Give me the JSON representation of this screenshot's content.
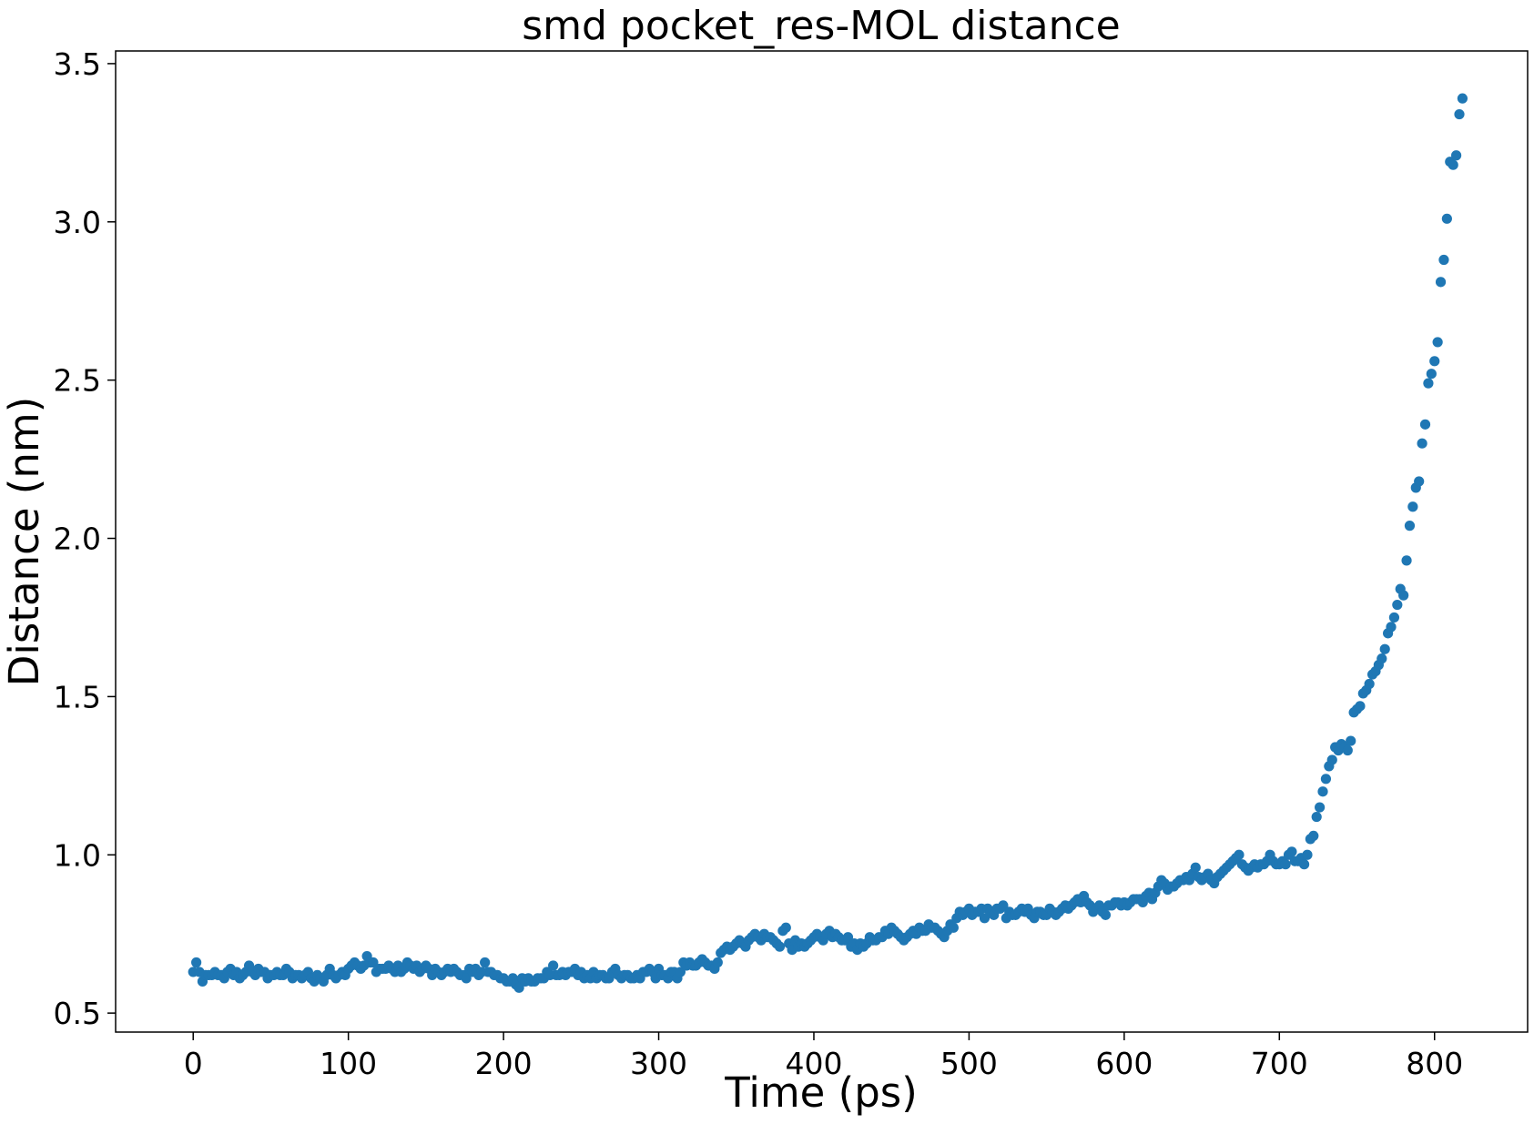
{
  "chart_data": {
    "type": "scatter",
    "title": "smd pocket_res-MOL distance",
    "xlabel": "Time (ps)",
    "ylabel": "Distance (nm)",
    "xlim": [
      -50,
      860
    ],
    "ylim": [
      0.44,
      3.54
    ],
    "xticks": [
      0,
      100,
      200,
      300,
      400,
      500,
      600,
      700,
      800
    ],
    "xtick_labels": [
      "0",
      "100",
      "200",
      "300",
      "400",
      "500",
      "600",
      "700",
      "800"
    ],
    "yticks": [
      0.5,
      1.0,
      1.5,
      2.0,
      2.5,
      3.0,
      3.5
    ],
    "ytick_labels": [
      "0.5",
      "1.0",
      "1.5",
      "2.0",
      "2.5",
      "3.0",
      "3.5"
    ],
    "grid": false,
    "legend": "none",
    "marker_color": "#1f77b4",
    "x_step": 2,
    "series": [
      {
        "x_start": 0,
        "x_step": 2,
        "y": [
          0.63,
          0.66,
          0.63,
          0.6,
          0.62,
          0.62,
          0.62,
          0.63,
          0.62,
          0.62,
          0.61,
          0.63,
          0.64,
          0.62,
          0.63,
          0.61,
          0.62,
          0.63,
          0.65,
          0.63,
          0.62,
          0.64,
          0.63,
          0.63,
          0.61,
          0.62,
          0.62,
          0.63,
          0.62,
          0.62,
          0.64,
          0.63,
          0.61,
          0.62,
          0.62,
          0.61,
          0.62,
          0.63,
          0.61,
          0.6,
          0.62,
          0.61,
          0.6,
          0.62,
          0.64,
          0.62,
          0.61,
          0.62,
          0.63,
          0.62,
          0.64,
          0.65,
          0.66,
          0.65,
          0.64,
          0.65,
          0.68,
          0.66,
          0.66,
          0.63,
          0.64,
          0.64,
          0.64,
          0.65,
          0.64,
          0.63,
          0.65,
          0.63,
          0.64,
          0.66,
          0.65,
          0.64,
          0.65,
          0.63,
          0.64,
          0.65,
          0.64,
          0.62,
          0.64,
          0.63,
          0.62,
          0.63,
          0.64,
          0.63,
          0.64,
          0.63,
          0.62,
          0.62,
          0.61,
          0.64,
          0.63,
          0.64,
          0.62,
          0.63,
          0.66,
          0.63,
          0.63,
          0.62,
          0.62,
          0.61,
          0.61,
          0.6,
          0.6,
          0.61,
          0.59,
          0.58,
          0.61,
          0.6,
          0.61,
          0.6,
          0.6,
          0.61,
          0.61,
          0.61,
          0.63,
          0.62,
          0.65,
          0.62,
          0.62,
          0.63,
          0.62,
          0.63,
          0.63,
          0.64,
          0.62,
          0.63,
          0.61,
          0.62,
          0.61,
          0.63,
          0.61,
          0.62,
          0.62,
          0.61,
          0.61,
          0.63,
          0.64,
          0.62,
          0.61,
          0.62,
          0.62,
          0.61,
          0.61,
          0.62,
          0.61,
          0.63,
          0.63,
          0.64,
          0.63,
          0.61,
          0.64,
          0.62,
          0.62,
          0.61,
          0.63,
          0.63,
          0.61,
          0.63,
          0.66,
          0.65,
          0.66,
          0.65,
          0.65,
          0.66,
          0.67,
          0.66,
          0.65,
          0.65,
          0.64,
          0.66,
          0.69,
          0.7,
          0.71,
          0.7,
          0.71,
          0.72,
          0.73,
          0.72,
          0.71,
          0.73,
          0.74,
          0.75,
          0.74,
          0.73,
          0.75,
          0.74,
          0.74,
          0.73,
          0.72,
          0.71,
          0.76,
          0.77,
          0.72,
          0.7,
          0.73,
          0.71,
          0.72,
          0.71,
          0.72,
          0.73,
          0.74,
          0.75,
          0.74,
          0.73,
          0.75,
          0.76,
          0.74,
          0.75,
          0.74,
          0.73,
          0.73,
          0.74,
          0.71,
          0.72,
          0.7,
          0.72,
          0.71,
          0.72,
          0.74,
          0.73,
          0.73,
          0.74,
          0.74,
          0.76,
          0.75,
          0.77,
          0.76,
          0.75,
          0.74,
          0.73,
          0.74,
          0.75,
          0.76,
          0.75,
          0.77,
          0.76,
          0.76,
          0.78,
          0.77,
          0.77,
          0.76,
          0.75,
          0.74,
          0.76,
          0.78,
          0.77,
          0.8,
          0.82,
          0.81,
          0.82,
          0.83,
          0.81,
          0.82,
          0.82,
          0.83,
          0.8,
          0.83,
          0.82,
          0.81,
          0.83,
          0.83,
          0.84,
          0.8,
          0.82,
          0.81,
          0.81,
          0.82,
          0.83,
          0.82,
          0.83,
          0.81,
          0.8,
          0.82,
          0.82,
          0.81,
          0.81,
          0.83,
          0.82,
          0.81,
          0.82,
          0.83,
          0.84,
          0.83,
          0.84,
          0.85,
          0.86,
          0.85,
          0.87,
          0.85,
          0.84,
          0.82,
          0.83,
          0.84,
          0.82,
          0.81,
          0.84,
          0.84,
          0.85,
          0.85,
          0.84,
          0.85,
          0.84,
          0.85,
          0.86,
          0.86,
          0.86,
          0.85,
          0.87,
          0.88,
          0.86,
          0.88,
          0.9,
          0.92,
          0.91,
          0.89,
          0.9,
          0.9,
          0.91,
          0.92,
          0.92,
          0.93,
          0.92,
          0.94,
          0.96,
          0.93,
          0.92,
          0.93,
          0.94,
          0.92,
          0.91,
          0.93,
          0.94,
          0.95,
          0.96,
          0.97,
          0.98,
          0.99,
          1.0,
          0.97,
          0.96,
          0.95,
          0.96,
          0.97,
          0.96,
          0.97,
          0.97,
          0.98,
          1.0,
          0.98,
          0.97,
          0.97,
          0.98,
          0.97,
          1.0,
          1.01,
          0.98,
          0.98,
          0.99,
          0.97,
          1.0,
          1.05,
          1.06,
          1.12,
          1.15,
          1.2,
          1.24,
          1.28,
          1.3,
          1.34,
          1.33,
          1.35,
          1.34,
          1.33,
          1.36,
          1.45,
          1.46,
          1.47,
          1.51,
          1.52,
          1.54,
          1.57,
          1.58,
          1.6,
          1.62,
          1.65,
          1.7,
          1.72,
          1.75,
          1.79,
          1.84,
          1.82,
          1.93,
          2.04,
          2.1,
          2.16,
          2.18,
          2.3,
          2.36,
          2.49,
          2.52,
          2.56,
          2.62,
          2.81,
          2.88,
          3.01,
          3.19,
          3.18,
          3.21,
          3.34,
          3.39
        ]
      }
    ]
  }
}
